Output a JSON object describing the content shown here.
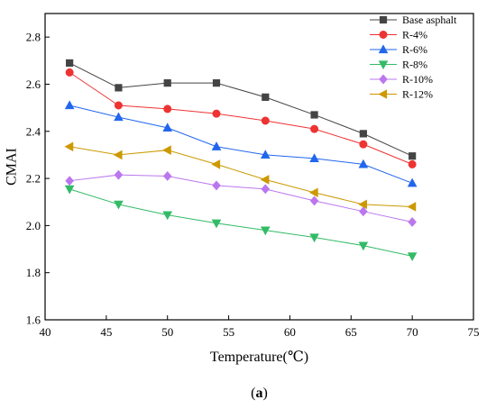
{
  "chart_data": {
    "type": "line",
    "xlabel": "Temperature(℃)",
    "ylabel": "CMAI",
    "xlim": [
      40,
      75
    ],
    "ylim": [
      1.6,
      2.9
    ],
    "xticks": [
      40,
      45,
      50,
      55,
      60,
      65,
      70,
      75
    ],
    "yticks": [
      1.6,
      1.8,
      2.0,
      2.2,
      2.4,
      2.6,
      2.8
    ],
    "xtick_labels": [
      "40",
      "45",
      "50",
      "55",
      "60",
      "65",
      "70",
      "75"
    ],
    "ytick_labels": [
      "1.6",
      "1.8",
      "2.0",
      "2.2",
      "2.4",
      "2.6",
      "2.8"
    ],
    "grid": false,
    "legend_position": "top-right",
    "x": [
      42,
      46,
      50,
      54,
      58,
      62,
      66,
      70
    ],
    "series": [
      {
        "name": "Base asphalt",
        "color": "#444444",
        "marker": "square",
        "values": [
          2.69,
          2.585,
          2.605,
          2.605,
          2.545,
          2.47,
          2.39,
          2.295
        ]
      },
      {
        "name": "R-4%",
        "color": "#ee3333",
        "marker": "circle",
        "values": [
          2.65,
          2.51,
          2.495,
          2.475,
          2.445,
          2.41,
          2.345,
          2.26
        ]
      },
      {
        "name": "R-6%",
        "color": "#2266ee",
        "marker": "triangle-up",
        "values": [
          2.51,
          2.46,
          2.415,
          2.335,
          2.3,
          2.285,
          2.26,
          2.18
        ]
      },
      {
        "name": "R-8%",
        "color": "#33bb66",
        "marker": "triangle-down",
        "values": [
          2.155,
          2.09,
          2.045,
          2.01,
          1.98,
          1.95,
          1.915,
          1.87
        ]
      },
      {
        "name": "R-10%",
        "color": "#bb77ee",
        "marker": "diamond",
        "values": [
          2.19,
          2.215,
          2.21,
          2.17,
          2.155,
          2.105,
          2.06,
          2.015
        ]
      },
      {
        "name": "R-12%",
        "color": "#cc9900",
        "marker": "triangle-left",
        "values": [
          2.335,
          2.3,
          2.32,
          2.26,
          2.195,
          2.14,
          2.09,
          2.08
        ]
      }
    ]
  },
  "panel_label": {
    "open": "(",
    "letter": "a",
    "close": ")"
  }
}
